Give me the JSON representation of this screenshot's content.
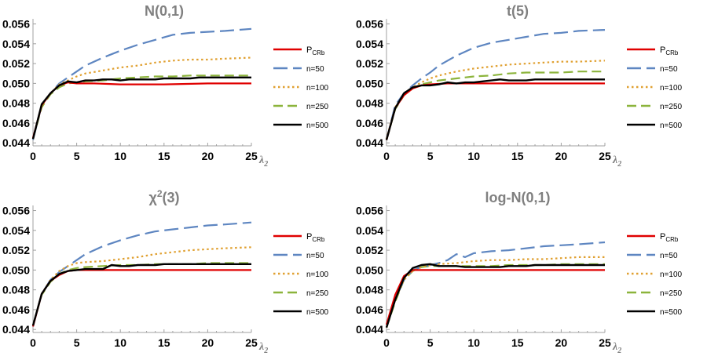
{
  "chart_data": [
    {
      "type": "line",
      "title": "N(0,1)",
      "xlabel": "λ2",
      "xticks": [
        "0",
        "5",
        "10",
        "15",
        "20",
        "25"
      ],
      "yticks": [
        "0.044",
        "0.046",
        "0.048",
        "0.050",
        "0.052",
        "0.054",
        "0.056"
      ],
      "xlim": [
        0,
        25
      ],
      "ylim": [
        0.0437,
        0.0562
      ],
      "legend": {
        "placement": "right",
        "entries": [
          "P_CRb",
          "n=50",
          "n=100",
          "n=250",
          "n=500"
        ]
      },
      "series": [
        {
          "name": "P_CRb",
          "color": "#e00000",
          "dash": "none",
          "x": [
            0,
            1,
            2,
            3,
            4,
            5,
            7,
            10,
            15,
            20,
            25
          ],
          "y": [
            0.0445,
            0.0478,
            0.049,
            0.0498,
            0.0501,
            0.05,
            0.05,
            0.0499,
            0.0499,
            0.05,
            0.05
          ]
        },
        {
          "name": "n=50",
          "color": "#5e86c1",
          "dash": "18,7",
          "x": [
            0,
            1,
            2,
            3,
            4,
            5,
            6,
            8,
            10,
            12,
            14,
            16,
            18,
            20,
            22,
            25
          ],
          "y": [
            0.0443,
            0.0478,
            0.049,
            0.05,
            0.0506,
            0.0512,
            0.0518,
            0.0526,
            0.0533,
            0.0539,
            0.0544,
            0.0549,
            0.0551,
            0.0552,
            0.0553,
            0.0555
          ]
        },
        {
          "name": "n=100",
          "color": "#e0a030",
          "dash": "2.5,3.5",
          "x": [
            0,
            1,
            2,
            3,
            4,
            5,
            6,
            8,
            10,
            12,
            14,
            16,
            18,
            20,
            22,
            25
          ],
          "y": [
            0.0444,
            0.0478,
            0.049,
            0.0499,
            0.0503,
            0.0507,
            0.051,
            0.0513,
            0.0516,
            0.0518,
            0.0521,
            0.0523,
            0.0524,
            0.0524,
            0.0525,
            0.0526
          ]
        },
        {
          "name": "n=250",
          "color": "#8cb43c",
          "dash": "12,6",
          "x": [
            0,
            1,
            2,
            3,
            4,
            5,
            6,
            8,
            10,
            12,
            14,
            16,
            18,
            20,
            22,
            25
          ],
          "y": [
            0.0444,
            0.0476,
            0.0489,
            0.0496,
            0.05,
            0.0501,
            0.0502,
            0.0503,
            0.0505,
            0.0506,
            0.0507,
            0.0507,
            0.0508,
            0.0508,
            0.0508,
            0.0508
          ]
        },
        {
          "name": "n=500",
          "color": "#000000",
          "dash": "none",
          "x": [
            0,
            1,
            2,
            3,
            4,
            5,
            6,
            7,
            8,
            9,
            10,
            11,
            12,
            13,
            14,
            15,
            16,
            17,
            18,
            19,
            20,
            21,
            22,
            23,
            24,
            25
          ],
          "y": [
            0.0444,
            0.0479,
            0.049,
            0.0498,
            0.0502,
            0.0501,
            0.0503,
            0.0503,
            0.0504,
            0.0504,
            0.0503,
            0.0504,
            0.0504,
            0.0504,
            0.0504,
            0.0505,
            0.0505,
            0.0505,
            0.0505,
            0.0506,
            0.0506,
            0.0506,
            0.0506,
            0.0506,
            0.0506,
            0.0506
          ]
        }
      ]
    },
    {
      "type": "line",
      "title": "t(5)",
      "xlabel": "λ2",
      "xticks": [
        "0",
        "5",
        "10",
        "15",
        "20",
        "25"
      ],
      "yticks": [
        "0.044",
        "0.046",
        "0.048",
        "0.050",
        "0.052",
        "0.054",
        "0.056"
      ],
      "xlim": [
        0,
        25
      ],
      "ylim": [
        0.0437,
        0.0562
      ],
      "legend": {
        "placement": "right",
        "entries": [
          "P_CRb",
          "n=50",
          "n=100",
          "n=250",
          "n=500"
        ]
      },
      "series": [
        {
          "name": "P_CRb",
          "color": "#e00000",
          "dash": "none",
          "x": [
            0,
            1,
            2,
            3,
            4,
            5,
            7,
            10,
            15,
            20,
            25
          ],
          "y": [
            0.0443,
            0.0475,
            0.0488,
            0.0495,
            0.0498,
            0.0499,
            0.05,
            0.05,
            0.05,
            0.05,
            0.05
          ]
        },
        {
          "name": "n=50",
          "color": "#5e86c1",
          "dash": "18,7",
          "x": [
            0,
            1,
            2,
            3,
            4,
            5,
            6,
            8,
            10,
            12,
            14,
            16,
            18,
            20,
            22,
            25
          ],
          "y": [
            0.0443,
            0.0478,
            0.049,
            0.0498,
            0.0505,
            0.0511,
            0.0518,
            0.0528,
            0.0536,
            0.0541,
            0.0544,
            0.0547,
            0.055,
            0.0551,
            0.0553,
            0.0554
          ]
        },
        {
          "name": "n=100",
          "color": "#e0a030",
          "dash": "2.5,3.5",
          "x": [
            0,
            1,
            2,
            3,
            4,
            5,
            6,
            8,
            10,
            12,
            14,
            16,
            18,
            20,
            22,
            25
          ],
          "y": [
            0.0444,
            0.0476,
            0.0489,
            0.0496,
            0.0501,
            0.0505,
            0.0508,
            0.0512,
            0.0515,
            0.0517,
            0.0519,
            0.052,
            0.0521,
            0.0522,
            0.0522,
            0.0523
          ]
        },
        {
          "name": "n=250",
          "color": "#8cb43c",
          "dash": "12,6",
          "x": [
            0,
            1,
            2,
            3,
            4,
            5,
            6,
            8,
            10,
            12,
            14,
            16,
            18,
            20,
            22,
            25
          ],
          "y": [
            0.0443,
            0.0474,
            0.0488,
            0.0495,
            0.0499,
            0.0501,
            0.0503,
            0.0505,
            0.0507,
            0.0508,
            0.051,
            0.0511,
            0.0511,
            0.0511,
            0.0512,
            0.0512
          ]
        },
        {
          "name": "n=500",
          "color": "#000000",
          "dash": "none",
          "x": [
            0,
            1,
            2,
            3,
            4,
            5,
            6,
            7,
            8,
            9,
            10,
            11,
            12,
            13,
            14,
            15,
            16,
            17,
            18,
            19,
            20,
            21,
            22,
            23,
            24,
            25
          ],
          "y": [
            0.0443,
            0.0475,
            0.049,
            0.0496,
            0.0498,
            0.0498,
            0.0499,
            0.0501,
            0.05,
            0.0501,
            0.0501,
            0.0502,
            0.0503,
            0.0504,
            0.0503,
            0.0503,
            0.0503,
            0.0504,
            0.0504,
            0.0504,
            0.0504,
            0.0504,
            0.0504,
            0.0504,
            0.0504,
            0.0504
          ]
        }
      ]
    },
    {
      "type": "line",
      "title": "χ2(3)",
      "xlabel": "λ2",
      "xticks": [
        "0",
        "5",
        "10",
        "15",
        "20",
        "25"
      ],
      "yticks": [
        "0.044",
        "0.046",
        "0.048",
        "0.050",
        "0.052",
        "0.054",
        "0.056"
      ],
      "xlim": [
        0,
        25
      ],
      "ylim": [
        0.0437,
        0.0562
      ],
      "legend": {
        "placement": "right",
        "entries": [
          "P_CRb",
          "n=50",
          "n=100",
          "n=250",
          "n=500"
        ]
      },
      "series": [
        {
          "name": "P_CRb",
          "color": "#e00000",
          "dash": "none",
          "x": [
            0,
            1,
            2,
            3,
            4,
            5,
            7,
            10,
            15,
            20,
            25
          ],
          "y": [
            0.0443,
            0.0476,
            0.0489,
            0.0495,
            0.0499,
            0.05,
            0.05,
            0.05,
            0.05,
            0.05,
            0.05
          ]
        },
        {
          "name": "n=50",
          "color": "#5e86c1",
          "dash": "18,7",
          "x": [
            0,
            1,
            2,
            3,
            4,
            5,
            6,
            8,
            10,
            12,
            14,
            16,
            18,
            20,
            22,
            25
          ],
          "y": [
            0.0443,
            0.0476,
            0.049,
            0.0498,
            0.0504,
            0.051,
            0.0516,
            0.0524,
            0.053,
            0.0535,
            0.0539,
            0.0541,
            0.0543,
            0.0545,
            0.0546,
            0.0548
          ]
        },
        {
          "name": "n=100",
          "color": "#e0a030",
          "dash": "2.5,3.5",
          "x": [
            0,
            1,
            2,
            3,
            4,
            5,
            6,
            8,
            10,
            12,
            14,
            16,
            18,
            20,
            22,
            25
          ],
          "y": [
            0.0444,
            0.0476,
            0.049,
            0.0499,
            0.0504,
            0.0507,
            0.0508,
            0.0509,
            0.0511,
            0.0513,
            0.0516,
            0.0518,
            0.052,
            0.0521,
            0.0522,
            0.0523
          ]
        },
        {
          "name": "n=250",
          "color": "#8cb43c",
          "dash": "12,6",
          "x": [
            0,
            1,
            2,
            3,
            4,
            5,
            6,
            8,
            10,
            12,
            14,
            16,
            18,
            20,
            22,
            25
          ],
          "y": [
            0.0444,
            0.0475,
            0.0488,
            0.0496,
            0.05,
            0.0502,
            0.0503,
            0.0504,
            0.0505,
            0.0505,
            0.0506,
            0.0506,
            0.0506,
            0.0507,
            0.0507,
            0.0507
          ]
        },
        {
          "name": "n=500",
          "color": "#000000",
          "dash": "none",
          "x": [
            0,
            1,
            2,
            3,
            4,
            5,
            6,
            7,
            8,
            9,
            10,
            11,
            12,
            13,
            14,
            15,
            16,
            17,
            18,
            19,
            20,
            21,
            22,
            23,
            24,
            25
          ],
          "y": [
            0.0444,
            0.0476,
            0.0489,
            0.0496,
            0.0499,
            0.05,
            0.0501,
            0.0501,
            0.0501,
            0.0505,
            0.0504,
            0.0504,
            0.0505,
            0.0505,
            0.0505,
            0.0506,
            0.0506,
            0.0506,
            0.0506,
            0.0506,
            0.0506,
            0.0506,
            0.0506,
            0.0506,
            0.0506,
            0.0506
          ]
        }
      ]
    },
    {
      "type": "line",
      "title": "log-N(0,1)",
      "xlabel": "λ2",
      "xticks": [
        "0",
        "5",
        "10",
        "15",
        "20",
        "25"
      ],
      "yticks": [
        "0.044",
        "0.046",
        "0.048",
        "0.050",
        "0.052",
        "0.054",
        "0.056"
      ],
      "xlim": [
        0,
        25
      ],
      "ylim": [
        0.0437,
        0.0562
      ],
      "legend": {
        "placement": "right",
        "entries": [
          "P_CRb",
          "n=50",
          "n=100",
          "n=250",
          "n=500"
        ]
      },
      "series": [
        {
          "name": "P_CRb",
          "color": "#e00000",
          "dash": "none",
          "x": [
            0,
            1,
            2,
            3,
            4,
            5,
            7,
            10,
            15,
            20,
            25
          ],
          "y": [
            0.0445,
            0.0475,
            0.0494,
            0.05,
            0.05,
            0.05,
            0.05,
            0.05,
            0.05,
            0.05,
            0.05
          ]
        },
        {
          "name": "n=50",
          "color": "#5e86c1",
          "dash": "18,7",
          "x": [
            0,
            1,
            2,
            3,
            4,
            5,
            6,
            7,
            8,
            9,
            10,
            12,
            14,
            16,
            18,
            20,
            22,
            25
          ],
          "y": [
            0.0442,
            0.047,
            0.049,
            0.05,
            0.0503,
            0.0505,
            0.0507,
            0.051,
            0.0516,
            0.0513,
            0.0517,
            0.0519,
            0.052,
            0.0522,
            0.0524,
            0.0525,
            0.0526,
            0.0528
          ]
        },
        {
          "name": "n=100",
          "color": "#e0a030",
          "dash": "2.5,3.5",
          "x": [
            0,
            1,
            2,
            3,
            4,
            5,
            6,
            8,
            10,
            12,
            14,
            16,
            18,
            20,
            22,
            25
          ],
          "y": [
            0.0442,
            0.047,
            0.049,
            0.0499,
            0.0503,
            0.0505,
            0.0506,
            0.0507,
            0.0509,
            0.051,
            0.051,
            0.0511,
            0.0511,
            0.0512,
            0.0513,
            0.0513
          ]
        },
        {
          "name": "n=250",
          "color": "#8cb43c",
          "dash": "12,6",
          "x": [
            0,
            1,
            2,
            3,
            4,
            5,
            6,
            8,
            10,
            12,
            14,
            16,
            18,
            20,
            22,
            25
          ],
          "y": [
            0.0442,
            0.0468,
            0.049,
            0.0499,
            0.0503,
            0.0504,
            0.0504,
            0.0504,
            0.0504,
            0.0504,
            0.0505,
            0.0505,
            0.0505,
            0.0506,
            0.0506,
            0.0506
          ]
        },
        {
          "name": "n=500",
          "color": "#000000",
          "dash": "none",
          "x": [
            0,
            1,
            2,
            3,
            4,
            5,
            6,
            7,
            8,
            9,
            10,
            11,
            12,
            13,
            14,
            15,
            16,
            17,
            18,
            19,
            20,
            21,
            22,
            23,
            24,
            25
          ],
          "y": [
            0.0442,
            0.047,
            0.0492,
            0.0502,
            0.0505,
            0.0506,
            0.0504,
            0.0504,
            0.0504,
            0.0503,
            0.0503,
            0.0503,
            0.0503,
            0.0503,
            0.0504,
            0.0504,
            0.0504,
            0.0505,
            0.0505,
            0.0505,
            0.0505,
            0.0505,
            0.0505,
            0.0505,
            0.0505,
            0.0505
          ]
        }
      ]
    }
  ]
}
